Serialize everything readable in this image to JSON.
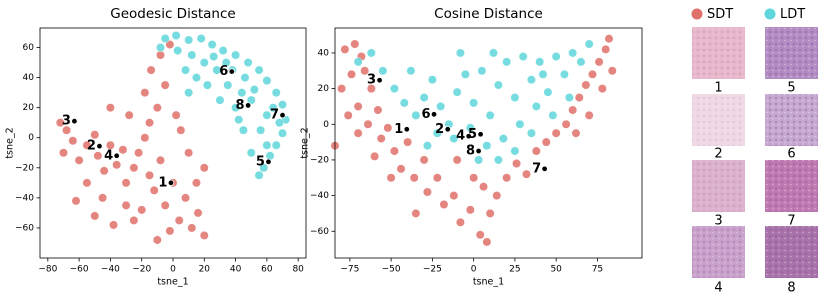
{
  "chart_data": [
    {
      "type": "scatter",
      "title": "Geodesic Distance",
      "x_label": "tsne_1",
      "y_label": "tsne_2",
      "xlim": [
        -85,
        85
      ],
      "ylim": [
        -80,
        73
      ],
      "xticks": [
        {
          "value": -80,
          "label": "−80"
        },
        {
          "value": -60,
          "label": "−60"
        },
        {
          "value": -40,
          "label": "−40"
        },
        {
          "value": -20,
          "label": "−20"
        },
        0,
        20,
        40,
        60,
        80
      ],
      "yticks": [
        {
          "value": -60,
          "label": "−60"
        },
        {
          "value": -40,
          "label": "−40"
        },
        {
          "value": -20,
          "label": "−20"
        },
        0,
        20,
        40,
        60
      ],
      "series": [
        {
          "name": "SDT",
          "color": "#e0706a",
          "x": [
            -72,
            -68,
            -64,
            -70,
            -60,
            -55,
            -50,
            -48,
            -44,
            -40,
            -36,
            -32,
            -30,
            -25,
            -22,
            -18,
            -15,
            -12,
            -8,
            -5,
            0,
            4,
            8,
            12,
            16,
            20,
            -2,
            -20,
            -30,
            -45,
            -55,
            -62,
            -50,
            -38,
            -25,
            -10,
            -15,
            -10,
            -18,
            -5,
            -14,
            -8,
            -2,
            5,
            10,
            2,
            -28,
            -40,
            20,
            15
          ],
          "y": [
            10,
            5,
            -2,
            -10,
            -15,
            -5,
            2,
            -12,
            -22,
            -5,
            -18,
            -8,
            -30,
            -20,
            -10,
            0,
            -25,
            -35,
            -15,
            -45,
            -30,
            -55,
            -40,
            -60,
            -50,
            -65,
            -62,
            -48,
            -45,
            -40,
            -30,
            -42,
            -52,
            -58,
            -55,
            -68,
            10,
            20,
            30,
            35,
            45,
            55,
            62,
            5,
            -10,
            15,
            15,
            20,
            -20,
            -30
          ]
        },
        {
          "name": "LDT",
          "color": "#5ed6db",
          "x": [
            -5,
            2,
            10,
            18,
            25,
            32,
            40,
            48,
            55,
            60,
            66,
            70,
            72,
            70,
            66,
            62,
            58,
            55,
            50,
            45,
            40,
            35,
            28,
            20,
            12,
            22,
            30,
            15,
            8,
            44,
            50,
            60,
            64,
            56,
            38,
            46,
            52,
            3,
            -8,
            34,
            26,
            42,
            60,
            68,
            10
          ],
          "y": [
            66,
            68,
            65,
            66,
            62,
            58,
            55,
            50,
            45,
            38,
            30,
            22,
            12,
            3,
            -5,
            -12,
            -20,
            -25,
            -10,
            5,
            20,
            35,
            45,
            50,
            55,
            35,
            25,
            40,
            45,
            30,
            25,
            15,
            20,
            5,
            45,
            40,
            32,
            58,
            60,
            50,
            54,
            12,
            -5,
            10,
            30
          ]
        }
      ],
      "annotations": [
        {
          "label": "1",
          "x": -1.3,
          "y": -30
        },
        {
          "label": "2",
          "x": -47,
          "y": -5.6
        },
        {
          "label": "3",
          "x": -63,
          "y": 11
        },
        {
          "label": "4",
          "x": -36,
          "y": -12
        },
        {
          "label": "5",
          "x": 61,
          "y": -16
        },
        {
          "label": "6",
          "x": 37.6,
          "y": 44
        },
        {
          "label": "7",
          "x": 70,
          "y": 15
        },
        {
          "label": "8",
          "x": 48,
          "y": 21.5
        }
      ]
    },
    {
      "type": "scatter",
      "title": "Cosine Distance",
      "x_label": "tsne_1",
      "y_label": "tsne_2",
      "xlim": [
        -84,
        102
      ],
      "ylim": [
        -75,
        54
      ],
      "xticks": [
        {
          "value": -75,
          "label": "−75"
        },
        {
          "value": -50,
          "label": "−50"
        },
        {
          "value": -25,
          "label": "−25"
        },
        0,
        25,
        50,
        75
      ],
      "yticks": [
        {
          "value": -60,
          "label": "−60"
        },
        {
          "value": -40,
          "label": "−40"
        },
        {
          "value": -20,
          "label": "−20"
        },
        0,
        20,
        40
      ],
      "series": [
        {
          "name": "SDT",
          "color": "#e0706a",
          "x": [
            -78,
            -72,
            -68,
            -80,
            -74,
            -66,
            -62,
            -70,
            -76,
            -64,
            -58,
            -56,
            -60,
            -52,
            -48,
            -44,
            -40,
            -36,
            -30,
            -28,
            -22,
            -18,
            -12,
            -8,
            -2,
            4,
            8,
            10,
            -70,
            -50,
            -10,
            0,
            6,
            14,
            20,
            26,
            32,
            38,
            44,
            50,
            56,
            60,
            64,
            68,
            72,
            76,
            80,
            82,
            84,
            78,
            70,
            62,
            -84,
            -35
          ],
          "y": [
            42,
            45,
            38,
            20,
            28,
            30,
            20,
            10,
            5,
            0,
            8,
            -8,
            -18,
            -2,
            -15,
            -25,
            -10,
            -30,
            -20,
            -38,
            -30,
            -45,
            -40,
            -55,
            -48,
            -62,
            -66,
            -50,
            -5,
            -30,
            -20,
            -30,
            -35,
            -40,
            -30,
            -22,
            -28,
            -15,
            -10,
            -5,
            0,
            8,
            15,
            22,
            28,
            35,
            42,
            48,
            30,
            20,
            5,
            -5,
            -12,
            -50
          ]
        },
        {
          "name": "LDT",
          "color": "#5ed6db",
          "x": [
            -70,
            -62,
            -55,
            -48,
            -42,
            -35,
            -30,
            -25,
            -20,
            -15,
            -10,
            -5,
            0,
            5,
            10,
            15,
            20,
            25,
            30,
            35,
            40,
            45,
            50,
            55,
            60,
            65,
            58,
            48,
            38,
            28,
            18,
            8,
            -2,
            -12,
            -22,
            25,
            35,
            42,
            12,
            -8,
            70,
            3,
            15,
            -38,
            -28
          ],
          "y": [
            35,
            40,
            30,
            20,
            12,
            5,
            15,
            25,
            10,
            0,
            18,
            28,
            12,
            30,
            5,
            22,
            35,
            15,
            38,
            25,
            35,
            18,
            38,
            28,
            40,
            35,
            15,
            5,
            10,
            0,
            -8,
            -12,
            -2,
            -8,
            -5,
            -15,
            -5,
            28,
            40,
            40,
            45,
            -20,
            -20,
            30,
            -12
          ]
        }
      ],
      "annotations": [
        {
          "label": "1",
          "x": -40.5,
          "y": -2.8
        },
        {
          "label": "2",
          "x": -15.7,
          "y": -2.8
        },
        {
          "label": "3",
          "x": -57,
          "y": 24.7
        },
        {
          "label": "4",
          "x": -3,
          "y": -6.7
        },
        {
          "label": "5",
          "x": 4.2,
          "y": -5.6
        },
        {
          "label": "6",
          "x": -24,
          "y": 5.6
        },
        {
          "label": "7",
          "x": 43,
          "y": -25
        },
        {
          "label": "8",
          "x": 3,
          "y": -15
        }
      ]
    }
  ],
  "thumbnails": {
    "labels": [
      "1",
      "2",
      "3",
      "4",
      "5",
      "6",
      "7",
      "8"
    ]
  }
}
